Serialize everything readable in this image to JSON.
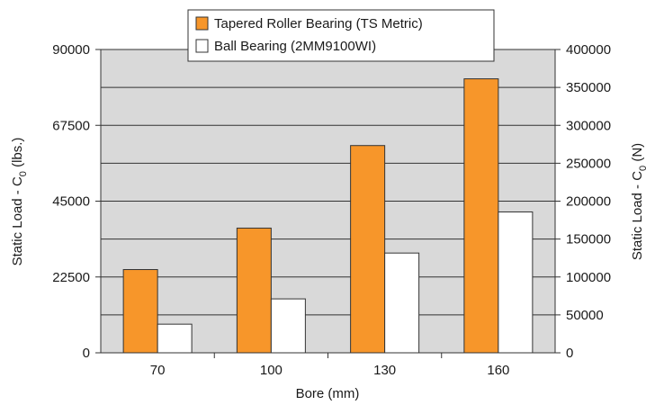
{
  "chart_data": {
    "type": "bar",
    "categories": [
      "70",
      "100",
      "130",
      "160"
    ],
    "series": [
      {
        "name": "Tapered Roller Bearing (TS Metric)",
        "values": [
          24700,
          37000,
          61500,
          81300
        ],
        "color": "#f7962a"
      },
      {
        "name": "Ball Bearing (2MM9100WI)",
        "values": [
          8500,
          16000,
          29600,
          41800
        ],
        "color": "#ffffff"
      }
    ],
    "xlabel": "Bore (mm)",
    "ylabel_left": {
      "prefix": "Static Load - C",
      "subscript": "0",
      "suffix": " (lbs.)"
    },
    "ylabel_right": {
      "prefix": "Static Load - C",
      "subscript": "0",
      "suffix": " (N)"
    },
    "ylim_left": [
      0,
      90000
    ],
    "yticks_left": [
      "0",
      "22500",
      "45000",
      "67500",
      "90000"
    ],
    "ylim_right": [
      0,
      400000
    ],
    "yticks_right": [
      "0",
      "50000",
      "100000",
      "150000",
      "200000",
      "250000",
      "300000",
      "350000",
      "400000"
    ],
    "plot_background": "#d9d9d9",
    "grid": true,
    "legend_position": "top-center"
  }
}
